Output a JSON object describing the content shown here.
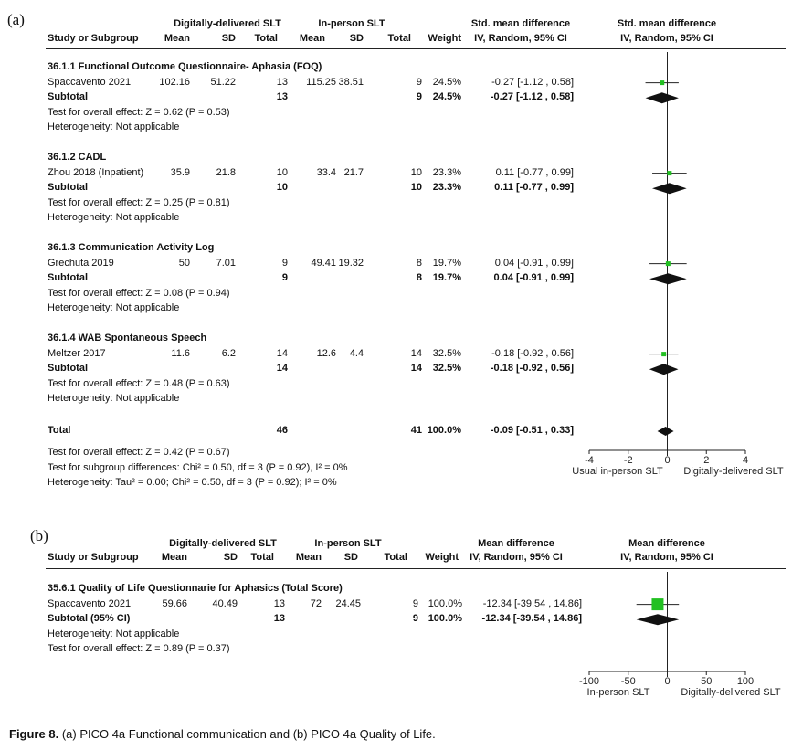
{
  "caption": {
    "label": "Figure 8.",
    "text": "(a) PICO 4a Functional communication and (b) PICO 4a Quality of Life."
  },
  "chart_data": [
    {
      "type": "forest",
      "panel_label": "(a)",
      "headers": {
        "group1": "Digitally-delivered SLT",
        "group2": "In-person SLT",
        "effect_top": "Std. mean difference",
        "effect_sub": "IV, Random, 95% CI",
        "plot_top": "Std. mean difference",
        "plot_sub": "IV, Random, 95% CI",
        "study": "Study or Subgroup",
        "mean": "Mean",
        "sd": "SD",
        "total": "Total",
        "weight": "Weight"
      },
      "axis": {
        "min": -4,
        "max": 4,
        "ticks": [
          "-4",
          "-2",
          "0",
          "2",
          "4"
        ],
        "tick_values": [
          -4,
          -2,
          0,
          2,
          4
        ],
        "left_label": "Usual in-person SLT",
        "right_label": "Digitally-delivered SLT"
      },
      "subgroups": [
        {
          "title": "36.1.1 Functional Outcome Questionnaire- Aphasia (FOQ)",
          "studies": [
            {
              "name": "Spaccavento 2021",
              "m1": "102.16",
              "sd1": "51.22",
              "n1": "13",
              "m2": "115.25",
              "sd2": "38.51",
              "n2": "9",
              "weight": "24.5%",
              "ci_text": "-0.27 [-1.12 , 0.58]",
              "est": -0.27,
              "lo": -1.12,
              "hi": 0.58
            }
          ],
          "subtotal": {
            "label": "Subtotal",
            "n1": "13",
            "n2": "9",
            "weight": "24.5%",
            "ci_text": "-0.27 [-1.12 , 0.58]",
            "est": -0.27,
            "lo": -1.12,
            "hi": 0.58
          },
          "notes": [
            "Test for overall effect: Z = 0.62 (P = 0.53)",
            "Heterogeneity: Not applicable"
          ]
        },
        {
          "title": "36.1.2 CADL",
          "studies": [
            {
              "name": "Zhou 2018 (Inpatient)",
              "m1": "35.9",
              "sd1": "21.8",
              "n1": "10",
              "m2": "33.4",
              "sd2": "21.7",
              "n2": "10",
              "weight": "23.3%",
              "ci_text": "0.11 [-0.77 , 0.99]",
              "est": 0.11,
              "lo": -0.77,
              "hi": 0.99
            }
          ],
          "subtotal": {
            "label": "Subtotal",
            "n1": "10",
            "n2": "10",
            "weight": "23.3%",
            "ci_text": "0.11 [-0.77 , 0.99]",
            "est": 0.11,
            "lo": -0.77,
            "hi": 0.99
          },
          "notes": [
            "Test for overall effect: Z = 0.25 (P = 0.81)",
            "Heterogeneity: Not applicable"
          ]
        },
        {
          "title": "36.1.3 Communication Activity Log",
          "studies": [
            {
              "name": "Grechuta 2019",
              "m1": "50",
              "sd1": "7.01",
              "n1": "9",
              "m2": "49.41",
              "sd2": "19.32",
              "n2": "8",
              "weight": "19.7%",
              "ci_text": "0.04 [-0.91 , 0.99]",
              "est": 0.04,
              "lo": -0.91,
              "hi": 0.99
            }
          ],
          "subtotal": {
            "label": "Subtotal",
            "n1": "9",
            "n2": "8",
            "weight": "19.7%",
            "ci_text": "0.04 [-0.91 , 0.99]",
            "est": 0.04,
            "lo": -0.91,
            "hi": 0.99
          },
          "notes": [
            "Test for overall effect: Z = 0.08 (P = 0.94)",
            "Heterogeneity: Not applicable"
          ]
        },
        {
          "title": "36.1.4 WAB Spontaneous Speech",
          "studies": [
            {
              "name": "Meltzer 2017",
              "m1": "11.6",
              "sd1": "6.2",
              "n1": "14",
              "m2": "12.6",
              "sd2": "4.4",
              "n2": "14",
              "weight": "32.5%",
              "ci_text": "-0.18 [-0.92 , 0.56]",
              "est": -0.18,
              "lo": -0.92,
              "hi": 0.56
            }
          ],
          "subtotal": {
            "label": "Subtotal",
            "n1": "14",
            "n2": "14",
            "weight": "32.5%",
            "ci_text": "-0.18 [-0.92 , 0.56]",
            "est": -0.18,
            "lo": -0.92,
            "hi": 0.56
          },
          "notes": [
            "Test for overall effect: Z = 0.48 (P = 0.63)",
            "Heterogeneity: Not applicable"
          ]
        }
      ],
      "total": {
        "label": "Total",
        "n1": "46",
        "n2": "41",
        "weight": "100.0%",
        "ci_text": "-0.09 [-0.51 , 0.33]",
        "est": -0.09,
        "lo": -0.51,
        "hi": 0.33
      },
      "footer_notes": [
        "Test for overall effect: Z = 0.42 (P = 0.67)",
        "Test for subgroup differences: Chi² = 0.50, df = 3 (P = 0.92), I² = 0%",
        "Heterogeneity: Tau² = 0.00; Chi² = 0.50, df = 3 (P = 0.92); I² = 0%"
      ],
      "colors": {
        "marker": "#22c022",
        "line": "#111111"
      }
    },
    {
      "type": "forest",
      "panel_label": "(b)",
      "headers": {
        "group1": "Digitally-delivered SLT",
        "group2": "In-person SLT",
        "effect_top": "Mean difference",
        "effect_sub": "IV, Random, 95% CI",
        "plot_top": "Mean difference",
        "plot_sub": "IV, Random, 95% CI",
        "study": "Study or Subgroup",
        "mean": "Mean",
        "sd": "SD",
        "total": "Total",
        "weight": "Weight"
      },
      "axis": {
        "min": -100,
        "max": 100,
        "ticks": [
          "-100",
          "-50",
          "0",
          "50",
          "100"
        ],
        "tick_values": [
          -100,
          -50,
          0,
          50,
          100
        ],
        "left_label": "In-person SLT",
        "right_label": "Digitally-delivered SLT"
      },
      "subgroups": [
        {
          "title": "35.6.1 Quality of Life Questionnarie for Aphasics  (Total Score)",
          "studies": [
            {
              "name": "Spaccavento 2021",
              "m1": "59.66",
              "sd1": "40.49",
              "n1": "13",
              "m2": "72",
              "sd2": "24.45",
              "n2": "9",
              "weight": "100.0%",
              "ci_text": "-12.34 [-39.54 , 14.86]",
              "est": -12.34,
              "lo": -39.54,
              "hi": 14.86
            }
          ],
          "subtotal": {
            "label": "Subtotal (95% CI)",
            "n1": "13",
            "n2": "9",
            "weight": "100.0%",
            "ci_text": "-12.34 [-39.54 , 14.86]",
            "est": -12.34,
            "lo": -39.54,
            "hi": 14.86
          },
          "notes": [
            "Heterogeneity: Not applicable",
            "Test for overall effect: Z = 0.89 (P = 0.37)"
          ]
        }
      ],
      "colors": {
        "marker": "#22c022",
        "line": "#111111"
      }
    }
  ]
}
